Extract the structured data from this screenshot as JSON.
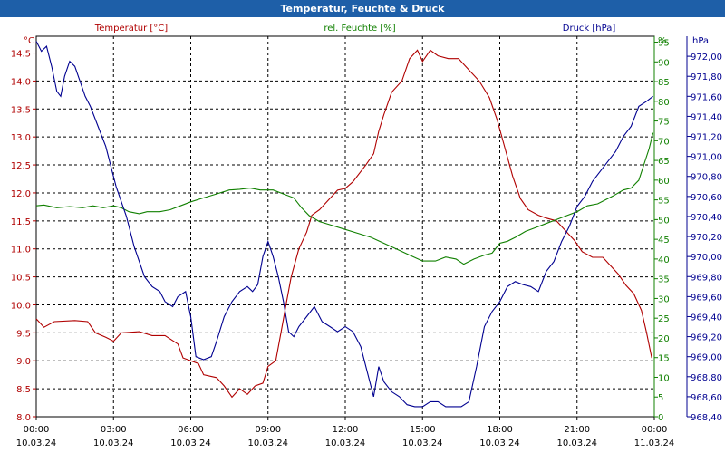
{
  "window": {
    "title": "Temperatur, Feuchte & Druck"
  },
  "chart_data": {
    "type": "line",
    "grid": true,
    "colors": {
      "temperature": "#b00000",
      "humidity": "#108000",
      "pressure": "#000090",
      "title_bar": "#1e5fa8"
    },
    "x_ticks": [
      {
        "time": "00:00",
        "date": "10.03.24"
      },
      {
        "time": "03:00",
        "date": "10.03.24"
      },
      {
        "time": "06:00",
        "date": "10.03.24"
      },
      {
        "time": "09:00",
        "date": "10.03.24"
      },
      {
        "time": "12:00",
        "date": "10.03.24"
      },
      {
        "time": "15:00",
        "date": "10.03.24"
      },
      {
        "time": "18:00",
        "date": "10.03.24"
      },
      {
        "time": "21:00",
        "date": "10.03.24"
      },
      {
        "time": "00:00",
        "date": "11.03.24"
      }
    ],
    "xlim": [
      0,
      24
    ],
    "axes": {
      "temperature": {
        "label": "Temperatur [°C]",
        "unit": "°C",
        "ylim": [
          8.0,
          14.8
        ],
        "ticks": [
          "8.0",
          "8.5",
          "9.0",
          "9.5",
          "10.0",
          "10.5",
          "11.0",
          "11.5",
          "12.0",
          "12.5",
          "13.0",
          "13.5",
          "14.0",
          "14.5"
        ]
      },
      "humidity": {
        "label": "rel. Feuchte [%]",
        "unit": "%",
        "ylim": [
          0,
          96.5
        ],
        "ticks": [
          "0",
          "5",
          "10",
          "15",
          "20",
          "25",
          "30",
          "35",
          "40",
          "45",
          "50",
          "55",
          "60",
          "65",
          "70",
          "75",
          "80",
          "85",
          "90",
          "95"
        ]
      },
      "pressure": {
        "label": "Druck [hPa]",
        "unit": "hPa",
        "ylim": [
          968.4,
          972.2
        ],
        "ticks": [
          "968,40",
          "968,60",
          "968,80",
          "969,00",
          "969,20",
          "969,40",
          "969,60",
          "969,80",
          "970,00",
          "970,20",
          "970,40",
          "970,60",
          "970,80",
          "971,00",
          "971,20",
          "971,40",
          "971,60",
          "971,80",
          "972,00"
        ]
      }
    },
    "series": [
      {
        "key": "temperature",
        "name": "Temperatur [°C]",
        "axis": "temperature",
        "points": [
          [
            0,
            9.75
          ],
          [
            0.3,
            9.6
          ],
          [
            0.7,
            9.7
          ],
          [
            1.5,
            9.72
          ],
          [
            2.0,
            9.7
          ],
          [
            2.3,
            9.5
          ],
          [
            2.7,
            9.42
          ],
          [
            3.0,
            9.35
          ],
          [
            3.3,
            9.5
          ],
          [
            4.0,
            9.52
          ],
          [
            4.5,
            9.45
          ],
          [
            5.0,
            9.45
          ],
          [
            5.5,
            9.3
          ],
          [
            5.7,
            9.05
          ],
          [
            6.0,
            9.0
          ],
          [
            6.3,
            8.95
          ],
          [
            6.5,
            8.75
          ],
          [
            7.0,
            8.7
          ],
          [
            7.3,
            8.55
          ],
          [
            7.6,
            8.35
          ],
          [
            7.9,
            8.5
          ],
          [
            8.2,
            8.4
          ],
          [
            8.5,
            8.55
          ],
          [
            8.8,
            8.6
          ],
          [
            9.0,
            8.9
          ],
          [
            9.3,
            9.0
          ],
          [
            9.5,
            9.5
          ],
          [
            9.7,
            10.0
          ],
          [
            9.9,
            10.5
          ],
          [
            10.2,
            11.0
          ],
          [
            10.5,
            11.3
          ],
          [
            10.7,
            11.6
          ],
          [
            11.0,
            11.7
          ],
          [
            11.3,
            11.85
          ],
          [
            11.7,
            12.05
          ],
          [
            12.0,
            12.08
          ],
          [
            12.3,
            12.2
          ],
          [
            12.8,
            12.5
          ],
          [
            13.1,
            12.7
          ],
          [
            13.3,
            13.1
          ],
          [
            13.5,
            13.4
          ],
          [
            13.8,
            13.8
          ],
          [
            14.2,
            14.0
          ],
          [
            14.5,
            14.4
          ],
          [
            14.8,
            14.55
          ],
          [
            15.0,
            14.35
          ],
          [
            15.3,
            14.55
          ],
          [
            15.6,
            14.45
          ],
          [
            16.0,
            14.4
          ],
          [
            16.4,
            14.4
          ],
          [
            16.8,
            14.2
          ],
          [
            17.2,
            14.0
          ],
          [
            17.6,
            13.7
          ],
          [
            17.9,
            13.3
          ],
          [
            18.2,
            12.8
          ],
          [
            18.5,
            12.3
          ],
          [
            18.8,
            11.9
          ],
          [
            19.1,
            11.7
          ],
          [
            19.5,
            11.6
          ],
          [
            19.8,
            11.55
          ],
          [
            20.2,
            11.5
          ],
          [
            20.6,
            11.3
          ],
          [
            20.9,
            11.15
          ],
          [
            21.2,
            10.95
          ],
          [
            21.6,
            10.85
          ],
          [
            22.0,
            10.85
          ],
          [
            22.3,
            10.7
          ],
          [
            22.6,
            10.55
          ],
          [
            22.9,
            10.35
          ],
          [
            23.2,
            10.2
          ],
          [
            23.5,
            9.9
          ],
          [
            23.7,
            9.5
          ],
          [
            23.9,
            9.05
          ]
        ]
      },
      {
        "key": "humidity",
        "name": "rel. Feuchte [%]",
        "axis": "humidity",
        "points": [
          [
            0,
            53.5
          ],
          [
            0.3,
            53.7
          ],
          [
            0.8,
            53
          ],
          [
            1.3,
            53.3
          ],
          [
            1.8,
            53
          ],
          [
            2.2,
            53.5
          ],
          [
            2.6,
            53
          ],
          [
            3.0,
            53.5
          ],
          [
            3.3,
            53
          ],
          [
            3.6,
            52
          ],
          [
            4.0,
            51.5
          ],
          [
            4.3,
            52
          ],
          [
            4.8,
            52
          ],
          [
            5.2,
            52.5
          ],
          [
            5.6,
            53.5
          ],
          [
            6.0,
            54.5
          ],
          [
            6.5,
            55.5
          ],
          [
            7.0,
            56.5
          ],
          [
            7.5,
            57.5
          ],
          [
            7.9,
            57.7
          ],
          [
            8.3,
            58
          ],
          [
            8.7,
            57.5
          ],
          [
            9.2,
            57.5
          ],
          [
            9.6,
            56.5
          ],
          [
            10.0,
            55.5
          ],
          [
            10.3,
            53
          ],
          [
            10.6,
            51
          ],
          [
            11.0,
            49.5
          ],
          [
            11.5,
            48.5
          ],
          [
            12.0,
            47.5
          ],
          [
            12.5,
            46.5
          ],
          [
            13.0,
            45.5
          ],
          [
            13.5,
            44
          ],
          [
            14.0,
            42.5
          ],
          [
            14.5,
            41
          ],
          [
            15.0,
            39.5
          ],
          [
            15.5,
            39.5
          ],
          [
            15.9,
            40.5
          ],
          [
            16.3,
            40
          ],
          [
            16.6,
            38.7
          ],
          [
            17.0,
            40
          ],
          [
            17.4,
            41
          ],
          [
            17.7,
            41.5
          ],
          [
            18.0,
            44
          ],
          [
            18.3,
            44.5
          ],
          [
            18.6,
            45.5
          ],
          [
            19.0,
            47
          ],
          [
            19.4,
            48
          ],
          [
            19.8,
            49
          ],
          [
            20.2,
            50
          ],
          [
            20.6,
            51
          ],
          [
            21.0,
            52
          ],
          [
            21.4,
            53.5
          ],
          [
            21.8,
            54
          ],
          [
            22.1,
            55
          ],
          [
            22.4,
            56
          ],
          [
            22.8,
            57.5
          ],
          [
            23.1,
            58
          ],
          [
            23.4,
            60
          ],
          [
            23.6,
            64
          ],
          [
            23.8,
            68
          ],
          [
            23.95,
            72
          ]
        ]
      },
      {
        "key": "pressure",
        "name": "Druck [hPa]",
        "axis": "pressure",
        "points": [
          [
            0,
            972.15
          ],
          [
            0.2,
            972.05
          ],
          [
            0.4,
            972.1
          ],
          [
            0.6,
            971.9
          ],
          [
            0.8,
            971.65
          ],
          [
            0.95,
            971.6
          ],
          [
            1.1,
            971.8
          ],
          [
            1.3,
            971.95
          ],
          [
            1.5,
            971.9
          ],
          [
            1.7,
            971.75
          ],
          [
            1.9,
            971.6
          ],
          [
            2.1,
            971.5
          ],
          [
            2.4,
            971.3
          ],
          [
            2.7,
            971.1
          ],
          [
            2.9,
            970.9
          ],
          [
            3.1,
            970.7
          ],
          [
            3.3,
            970.55
          ],
          [
            3.5,
            970.4
          ],
          [
            3.8,
            970.1
          ],
          [
            4.0,
            969.95
          ],
          [
            4.2,
            969.8
          ],
          [
            4.5,
            969.7
          ],
          [
            4.8,
            969.65
          ],
          [
            5.0,
            969.55
          ],
          [
            5.3,
            969.5
          ],
          [
            5.5,
            969.6
          ],
          [
            5.8,
            969.65
          ],
          [
            6.0,
            969.4
          ],
          [
            6.2,
            969.0
          ],
          [
            6.5,
            968.97
          ],
          [
            6.8,
            969.0
          ],
          [
            7.0,
            969.15
          ],
          [
            7.3,
            969.4
          ],
          [
            7.6,
            969.55
          ],
          [
            7.9,
            969.65
          ],
          [
            8.2,
            969.7
          ],
          [
            8.4,
            969.65
          ],
          [
            8.6,
            969.72
          ],
          [
            8.8,
            970.0
          ],
          [
            9.0,
            970.15
          ],
          [
            9.2,
            970.0
          ],
          [
            9.4,
            969.8
          ],
          [
            9.6,
            969.55
          ],
          [
            9.8,
            969.25
          ],
          [
            10.0,
            969.2
          ],
          [
            10.2,
            969.3
          ],
          [
            10.5,
            969.4
          ],
          [
            10.8,
            969.5
          ],
          [
            11.1,
            969.35
          ],
          [
            11.4,
            969.3
          ],
          [
            11.7,
            969.25
          ],
          [
            12.0,
            969.3
          ],
          [
            12.3,
            969.25
          ],
          [
            12.6,
            969.1
          ],
          [
            12.9,
            968.8
          ],
          [
            13.1,
            968.6
          ],
          [
            13.3,
            968.9
          ],
          [
            13.5,
            968.75
          ],
          [
            13.8,
            968.65
          ],
          [
            14.1,
            968.6
          ],
          [
            14.4,
            968.52
          ],
          [
            14.7,
            968.5
          ],
          [
            15.0,
            968.5
          ],
          [
            15.3,
            968.55
          ],
          [
            15.6,
            968.55
          ],
          [
            15.9,
            968.5
          ],
          [
            16.2,
            968.5
          ],
          [
            16.5,
            968.5
          ],
          [
            16.8,
            968.55
          ],
          [
            17.1,
            968.9
          ],
          [
            17.4,
            969.3
          ],
          [
            17.7,
            969.45
          ],
          [
            18.0,
            969.55
          ],
          [
            18.3,
            969.7
          ],
          [
            18.6,
            969.75
          ],
          [
            18.9,
            969.72
          ],
          [
            19.2,
            969.7
          ],
          [
            19.5,
            969.65
          ],
          [
            19.8,
            969.85
          ],
          [
            20.1,
            969.95
          ],
          [
            20.4,
            970.15
          ],
          [
            20.7,
            970.3
          ],
          [
            21.0,
            970.5
          ],
          [
            21.3,
            970.6
          ],
          [
            21.6,
            970.75
          ],
          [
            21.9,
            970.85
          ],
          [
            22.2,
            970.95
          ],
          [
            22.5,
            971.05
          ],
          [
            22.8,
            971.2
          ],
          [
            23.1,
            971.3
          ],
          [
            23.4,
            971.5
          ],
          [
            23.7,
            971.55
          ],
          [
            23.95,
            971.6
          ]
        ]
      }
    ]
  }
}
